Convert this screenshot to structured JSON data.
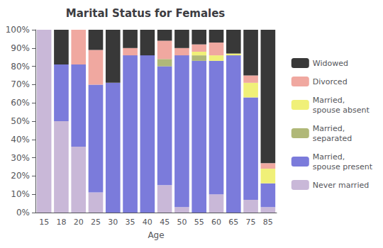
{
  "chart_data": {
    "type": "bar",
    "stacked": true,
    "title": "Marital Status for Females",
    "x_label": "Age",
    "categories": [
      "15",
      "18",
      "20",
      "25",
      "30",
      "35",
      "40",
      "45",
      "50",
      "55",
      "60",
      "65",
      "75",
      "85"
    ],
    "series": [
      {
        "name": "Never married",
        "color": "#c9b8d8",
        "values": [
          100,
          50,
          36,
          11,
          0,
          0,
          0,
          15,
          3,
          0,
          10,
          0,
          7,
          3
        ]
      },
      {
        "name": "Married,\nspouse present",
        "color": "#7b7bdb",
        "values": [
          0,
          31,
          45,
          59,
          71,
          86,
          86,
          65,
          83,
          83,
          73,
          86,
          56,
          13
        ]
      },
      {
        "name": "Married,\nseparated",
        "color": "#b0b878",
        "values": [
          0,
          0,
          0,
          0,
          0,
          0,
          0,
          4,
          0,
          3,
          0,
          0,
          0,
          0
        ]
      },
      {
        "name": "Married,\nspouse absent",
        "color": "#f0f078",
        "values": [
          0,
          0,
          0,
          0,
          0,
          0,
          0,
          0,
          0,
          2,
          3,
          1,
          8,
          8
        ]
      },
      {
        "name": "Divorced",
        "color": "#f0a8a0",
        "values": [
          0,
          0,
          19,
          19,
          0,
          4,
          0,
          10,
          4,
          4,
          7,
          0,
          4,
          3
        ]
      },
      {
        "name": "Widowed",
        "color": "#383838",
        "values": [
          0,
          19,
          0,
          11,
          29,
          10,
          14,
          6,
          10,
          8,
          7,
          13,
          25,
          73
        ]
      }
    ],
    "ylim": [
      0,
      100
    ],
    "yticks": [
      {
        "value": 0,
        "label": "0%"
      },
      {
        "value": 10,
        "label": "10%"
      },
      {
        "value": 20,
        "label": "20%"
      },
      {
        "value": 30,
        "label": "30%"
      },
      {
        "value": 40,
        "label": "40%"
      },
      {
        "value": 50,
        "label": "50%"
      },
      {
        "value": 60,
        "label": "60%"
      },
      {
        "value": 70,
        "label": "70%"
      },
      {
        "value": 80,
        "label": "80%"
      },
      {
        "value": 90,
        "label": "90%"
      },
      {
        "value": 100,
        "label": "100%"
      }
    ],
    "grid": false,
    "legend": "right"
  }
}
